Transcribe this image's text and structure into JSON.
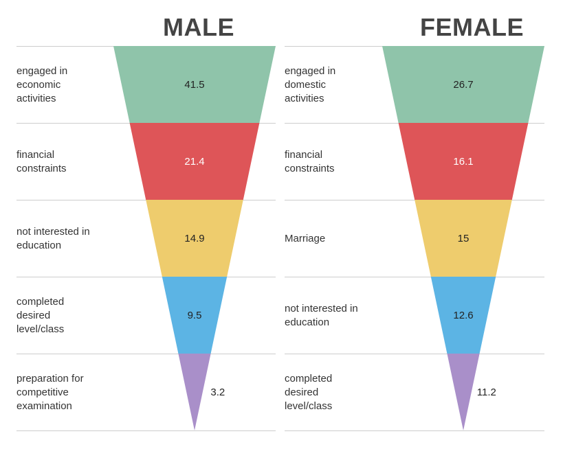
{
  "chart_data": [
    {
      "type": "funnel",
      "title": "MALE",
      "rows": [
        {
          "label": "engaged in economic activities",
          "value": 41.5,
          "color": "#8fc4aa"
        },
        {
          "label": "financial constraints",
          "value": 21.4,
          "color": "#de5558"
        },
        {
          "label": "not interested in education",
          "value": 14.9,
          "color": "#eecc6d"
        },
        {
          "label": "completed desired level/class",
          "value": 9.5,
          "color": "#5cb4e4"
        },
        {
          "label": "preparation for competitive examination",
          "value": 3.2,
          "color": "#a98fc9"
        }
      ]
    },
    {
      "type": "funnel",
      "title": "FEMALE",
      "rows": [
        {
          "label": "engaged in domestic activities",
          "value": 26.7,
          "color": "#8fc4aa"
        },
        {
          "label": "financial constraints",
          "value": 16.1,
          "color": "#de5558"
        },
        {
          "label": "Marriage",
          "value": 15,
          "color": "#eecc6d"
        },
        {
          "label": "not interested in education",
          "value": 12.6,
          "color": "#5cb4e4"
        },
        {
          "label": "completed desired level/class",
          "value": 11.2,
          "color": "#a98fc9"
        }
      ]
    }
  ],
  "row_label_lines": {
    "male": [
      [
        "engaged in",
        "economic",
        "activities"
      ],
      [
        "financial",
        "constraints"
      ],
      [
        "not interested in",
        "education"
      ],
      [
        "completed",
        "desired",
        "level/class"
      ],
      [
        "preparation for",
        "competitive",
        "examination"
      ]
    ],
    "female": [
      [
        "engaged in",
        "domestic",
        "activities"
      ],
      [
        "financial",
        "constraints"
      ],
      [
        "Marriage"
      ],
      [
        "not interested in",
        "education"
      ],
      [
        "completed",
        "desired",
        "level/class"
      ]
    ]
  }
}
